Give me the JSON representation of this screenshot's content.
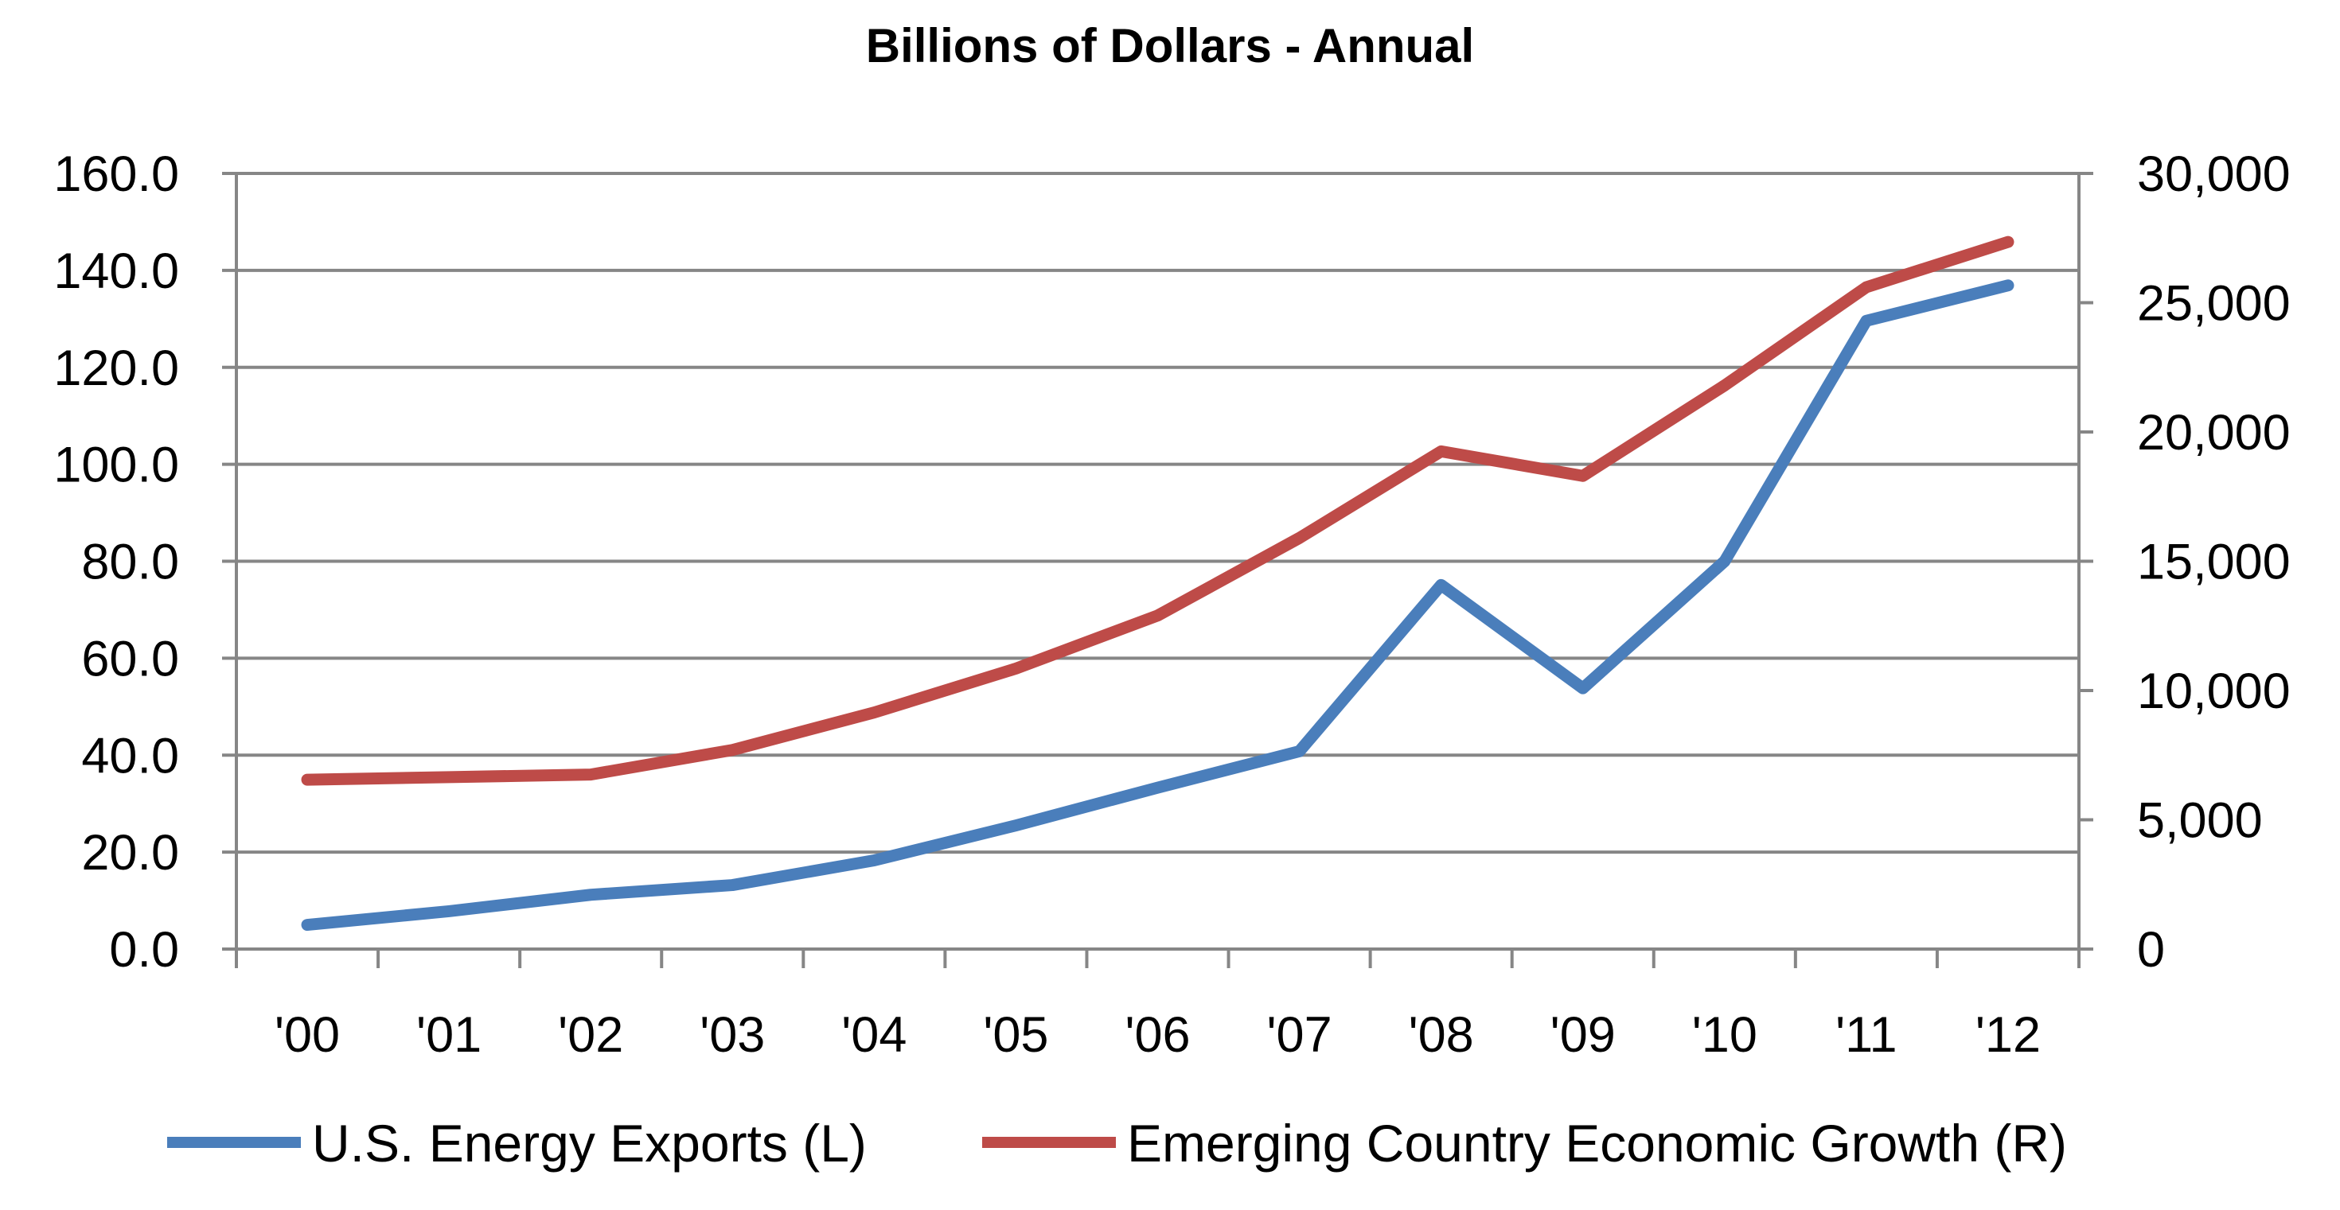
{
  "chart_data": {
    "type": "line",
    "title": "Billions of Dollars - Annual",
    "categories": [
      "'00",
      "'01",
      "'02",
      "'03",
      "'04",
      "'05",
      "'06",
      "'07",
      "'08",
      "'09",
      "'10",
      "'11",
      "'12"
    ],
    "series": [
      {
        "name": "U.S. Energy Exports (L)",
        "axis": "left",
        "color": "#4A7EBB",
        "values": [
          5.0,
          7.8,
          11.2,
          13.2,
          18.3,
          25.5,
          33.3,
          40.8,
          75.1,
          53.8,
          80.0,
          129.6,
          136.9
        ]
      },
      {
        "name": "Emerging Country Economic Growth (R)",
        "axis": "right",
        "color": "#BE4B48",
        "values": [
          6550,
          6650,
          6750,
          7700,
          9150,
          10850,
          12900,
          15900,
          19250,
          18300,
          21800,
          25600,
          27350
        ]
      }
    ],
    "y_left": {
      "min": 0,
      "max": 160,
      "step": 20,
      "tick_labels": [
        "0.0",
        "20.0",
        "40.0",
        "60.0",
        "80.0",
        "100.0",
        "120.0",
        "140.0",
        "160.0"
      ]
    },
    "y_right": {
      "min": 0,
      "max": 30000,
      "step": 5000,
      "tick_labels": [
        "0",
        "5,000",
        "10,000",
        "15,000",
        "20,000",
        "25,000",
        "30,000"
      ]
    },
    "grid": true,
    "gridline_color": "#868686",
    "legend_position": "bottom"
  }
}
